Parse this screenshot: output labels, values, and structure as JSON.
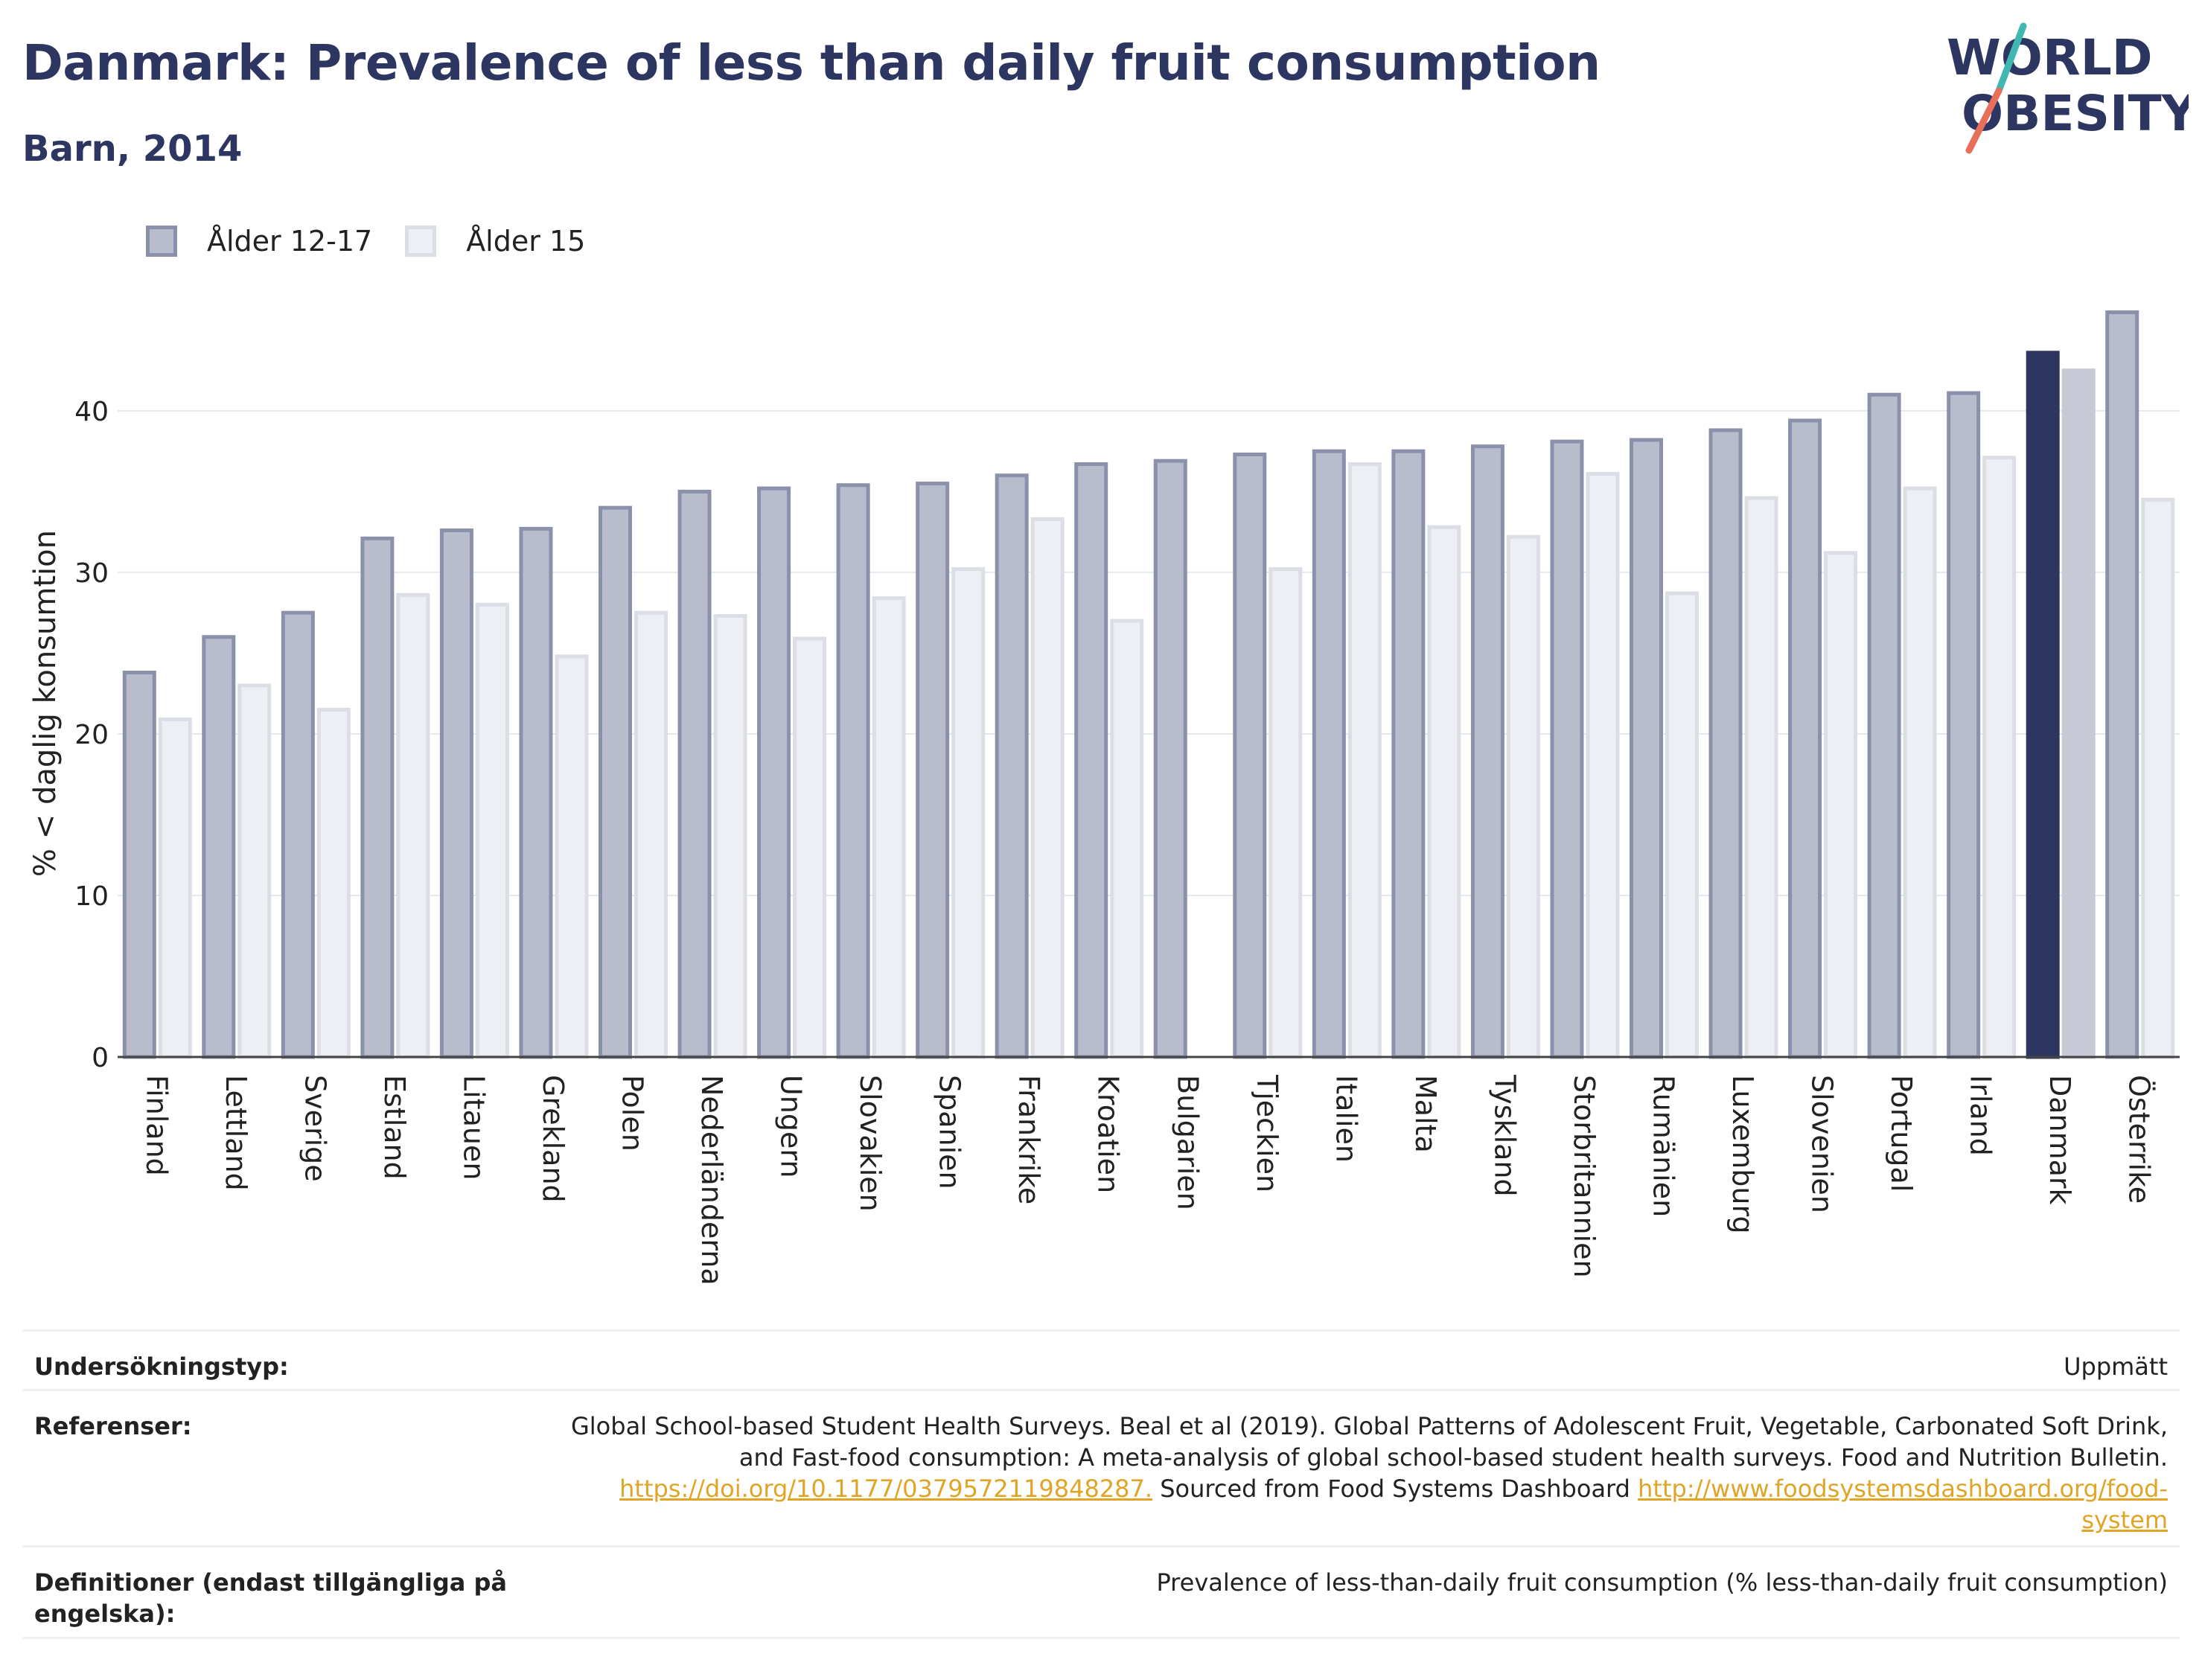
{
  "header": {
    "title": "Danmark: Prevalence of less than daily fruit consumption",
    "subtitle": "Barn, 2014"
  },
  "logo": {
    "line1": "WORLD",
    "line2": "OBESITY",
    "accent_teal": "#3fb8b1",
    "accent_coral": "#e8705a",
    "text_color": "#2d3561"
  },
  "colors": {
    "series1_fill": "#b9bccd",
    "series1_stroke": "#8c91ab",
    "series2_fill": "#eeeff4",
    "series2_stroke": "#dcdee6",
    "highlight1": "#2d3561",
    "highlight2": "#c7c9d6",
    "grid": "#e6e8ee",
    "axis": "#444444",
    "link": "#e0a526"
  },
  "chart_data": {
    "type": "bar",
    "ylabel": "% < daglig konsumtion",
    "ylim": [
      0,
      47
    ],
    "yticks": [
      0,
      10,
      20,
      30,
      40
    ],
    "grid": true,
    "legend_position": "top-left",
    "highlight": "Danmark",
    "categories": [
      "Finland",
      "Lettland",
      "Sverige",
      "Estland",
      "Litauen",
      "Grekland",
      "Polen",
      "Nederländerna",
      "Ungern",
      "Slovakien",
      "Spanien",
      "Frankrike",
      "Kroatien",
      "Bulgarien",
      "Tjeckien",
      "Italien",
      "Malta",
      "Tyskland",
      "Storbritannien",
      "Rumänien",
      "Luxemburg",
      "Slovenien",
      "Portugal",
      "Irland",
      "Danmark",
      "Österrike"
    ],
    "series": [
      {
        "name": "Ålder 12-17",
        "values": [
          23.8,
          26.0,
          27.5,
          32.1,
          32.6,
          32.7,
          34.0,
          35.0,
          35.2,
          35.4,
          35.5,
          36.0,
          36.7,
          36.9,
          37.3,
          37.5,
          37.5,
          37.8,
          38.1,
          38.2,
          38.8,
          39.4,
          41.0,
          41.1,
          43.6,
          46.1
        ]
      },
      {
        "name": "Ålder 15",
        "values": [
          20.9,
          23.0,
          21.5,
          28.6,
          28.0,
          24.8,
          27.5,
          27.3,
          25.9,
          28.4,
          30.2,
          33.3,
          27.0,
          null,
          30.2,
          36.7,
          32.8,
          32.2,
          36.1,
          28.7,
          34.6,
          31.2,
          35.2,
          37.1,
          42.5,
          34.5
        ]
      }
    ]
  },
  "info": {
    "survey_type_label": "Undersökningstyp:",
    "survey_type_value": "Uppmätt",
    "references_label": "Referenser:",
    "references_text": "Global School-based Student Health Surveys. Beal et al (2019). Global Patterns of Adolescent Fruit, Vegetable, Carbonated Soft Drink, and Fast-food consumption: A meta-analysis of global school-based student health surveys. Food and Nutrition Bulletin.",
    "references_link1": "https://doi.org/10.1177/0379572119848287.",
    "references_mid": "Sourced from Food Systems Dashboard",
    "references_link2": "http://www.foodsystemsdashboard.org/food-system",
    "definitions_label": "Definitioner (endast tillgängliga på engelska):",
    "definitions_value": "Prevalence of less-than-daily fruit consumption (% less-than-daily fruit consumption)"
  }
}
